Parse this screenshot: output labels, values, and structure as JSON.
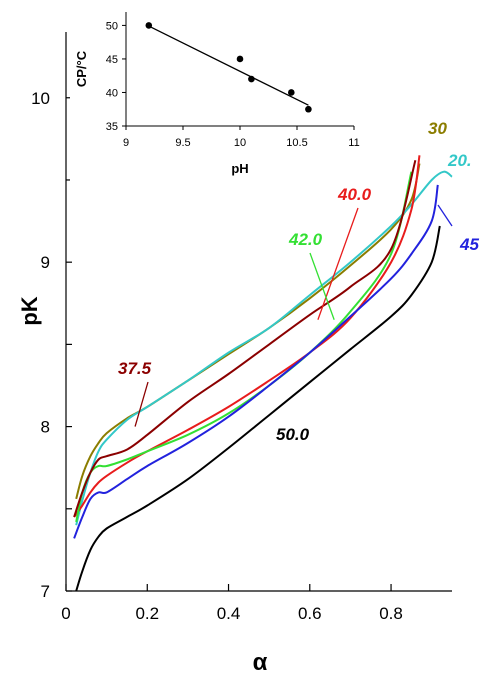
{
  "chart_data": [
    {
      "type": "line",
      "title": "",
      "xlabel": "α",
      "ylabel": "pK",
      "xlim": [
        0,
        0.95
      ],
      "ylim": [
        7,
        10.4
      ],
      "xticks": [
        0,
        0.2,
        0.4,
        0.6,
        0.8
      ],
      "xtick_labels": [
        "0",
        "0.2",
        "0.4",
        "0.6",
        "0.8"
      ],
      "yticks": [
        7,
        8,
        9,
        10
      ],
      "ytick_labels": [
        "7",
        "8",
        "9",
        "10"
      ],
      "grid": false,
      "legend": "inline labels",
      "series": [
        {
          "name": "30",
          "color": "#8b7d00",
          "x": [
            0.025,
            0.04,
            0.06,
            0.08,
            0.1,
            0.15,
            0.2,
            0.3,
            0.4,
            0.5,
            0.6,
            0.7,
            0.8,
            0.85,
            0.87
          ],
          "y": [
            7.56,
            7.7,
            7.82,
            7.9,
            7.96,
            8.05,
            8.12,
            8.28,
            8.44,
            8.6,
            8.78,
            8.98,
            9.2,
            9.38,
            9.6
          ]
        },
        {
          "name": "20.",
          "color": "#33c8c8",
          "x": [
            0.025,
            0.04,
            0.06,
            0.08,
            0.1,
            0.15,
            0.2,
            0.3,
            0.4,
            0.5,
            0.6,
            0.7,
            0.8,
            0.85,
            0.9,
            0.93,
            0.95
          ],
          "y": [
            7.4,
            7.55,
            7.72,
            7.85,
            7.92,
            8.04,
            8.12,
            8.28,
            8.45,
            8.6,
            8.8,
            9.0,
            9.22,
            9.35,
            9.5,
            9.55,
            9.52
          ]
        },
        {
          "name": "40.0",
          "color": "#e81c1c",
          "x": [
            0.02,
            0.04,
            0.06,
            0.08,
            0.1,
            0.15,
            0.2,
            0.3,
            0.4,
            0.5,
            0.6,
            0.7,
            0.8,
            0.85,
            0.87
          ],
          "y": [
            7.45,
            7.52,
            7.6,
            7.66,
            7.7,
            7.78,
            7.85,
            7.98,
            8.12,
            8.28,
            8.45,
            8.66,
            9.0,
            9.32,
            9.65
          ]
        },
        {
          "name": "42.0",
          "color": "#33e033",
          "x": [
            0.025,
            0.04,
            0.06,
            0.08,
            0.1,
            0.15,
            0.2,
            0.3,
            0.4,
            0.5,
            0.6,
            0.7,
            0.8,
            0.85
          ],
          "y": [
            7.42,
            7.6,
            7.72,
            7.76,
            7.76,
            7.8,
            7.85,
            7.95,
            8.08,
            8.25,
            8.45,
            8.7,
            9.05,
            9.55
          ]
        },
        {
          "name": "37.5",
          "color": "#8b0000",
          "x": [
            0.02,
            0.04,
            0.06,
            0.08,
            0.1,
            0.15,
            0.2,
            0.3,
            0.4,
            0.5,
            0.6,
            0.7,
            0.8,
            0.86
          ],
          "y": [
            7.45,
            7.6,
            7.72,
            7.8,
            7.82,
            7.86,
            7.95,
            8.15,
            8.32,
            8.5,
            8.68,
            8.85,
            9.08,
            9.62
          ]
        },
        {
          "name": "45",
          "color": "#2222dd",
          "x": [
            0.02,
            0.04,
            0.06,
            0.08,
            0.1,
            0.15,
            0.2,
            0.3,
            0.4,
            0.5,
            0.6,
            0.7,
            0.8,
            0.85,
            0.9,
            0.915
          ],
          "y": [
            7.32,
            7.45,
            7.56,
            7.6,
            7.6,
            7.68,
            7.76,
            7.9,
            8.06,
            8.25,
            8.45,
            8.67,
            8.9,
            9.05,
            9.25,
            9.47
          ]
        },
        {
          "name": "50.0",
          "color": "#000000",
          "x": [
            0.025,
            0.04,
            0.06,
            0.08,
            0.1,
            0.15,
            0.2,
            0.3,
            0.4,
            0.5,
            0.6,
            0.7,
            0.8,
            0.85,
            0.9,
            0.92
          ],
          "y": [
            7.0,
            7.12,
            7.25,
            7.33,
            7.38,
            7.45,
            7.52,
            7.68,
            7.87,
            8.07,
            8.27,
            8.47,
            8.67,
            8.8,
            9.0,
            9.22
          ]
        }
      ],
      "annotations": [
        {
          "text": "30",
          "color": "#8b7d00",
          "at_x": 0.86,
          "at_y": 9.4
        },
        {
          "text": "20.",
          "color": "#33c8c8",
          "at_x": 0.95,
          "at_y": 9.5
        },
        {
          "text": "40.0",
          "color": "#e81c1c",
          "at_x": 0.62,
          "at_y": 8.65
        },
        {
          "text": "42.0",
          "color": "#33e033",
          "at_x": 0.66,
          "at_y": 8.65
        },
        {
          "text": "37.5",
          "color": "#8b0000",
          "at_x": 0.17,
          "at_y": 8.0
        },
        {
          "text": "45",
          "color": "#2222dd",
          "at_x": 0.94,
          "at_y": 9.3
        },
        {
          "text": "50.0",
          "color": "#000000",
          "at_x": null,
          "at_y": null
        }
      ]
    },
    {
      "type": "scatter",
      "title": "",
      "xlabel": "pH",
      "ylabel": "CP/°C",
      "xlim": [
        9,
        11
      ],
      "ylim": [
        35,
        52
      ],
      "xticks": [
        9,
        9.5,
        10,
        10.5,
        11
      ],
      "xtick_labels": [
        "9",
        "9.5",
        "10",
        "10.5",
        "11"
      ],
      "yticks": [
        35,
        40,
        45,
        50
      ],
      "ytick_labels": [
        "35",
        "40",
        "45",
        "50"
      ],
      "grid": false,
      "points": [
        {
          "x": 9.2,
          "y": 50.0
        },
        {
          "x": 10.0,
          "y": 45.0
        },
        {
          "x": 10.1,
          "y": 42.0
        },
        {
          "x": 10.45,
          "y": 40.0
        },
        {
          "x": 10.6,
          "y": 37.5
        }
      ],
      "fit_line": {
        "x": [
          9.2,
          10.6
        ],
        "y": [
          49.9,
          38.1
        ]
      }
    }
  ]
}
